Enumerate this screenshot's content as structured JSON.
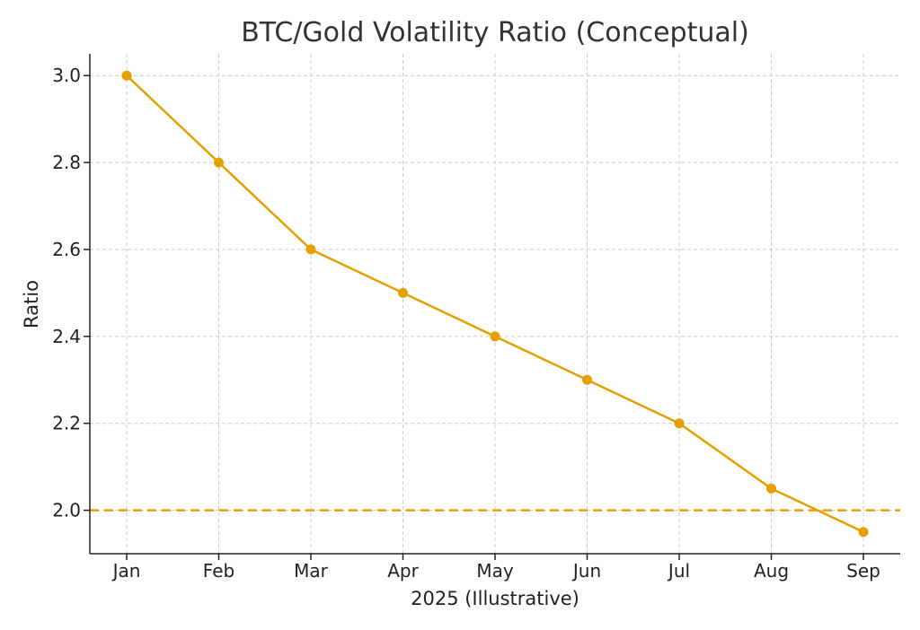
{
  "chart_data": {
    "type": "line",
    "title": "BTC/Gold Volatility Ratio (Conceptual)",
    "xlabel": "2025 (Illustrative)",
    "ylabel": "Ratio",
    "categories": [
      "Jan",
      "Feb",
      "Mar",
      "Apr",
      "May",
      "Jun",
      "Jul",
      "Aug",
      "Sep"
    ],
    "series": [
      {
        "name": "BTC/Gold Volatility Ratio",
        "values": [
          3.0,
          2.8,
          2.6,
          2.5,
          2.4,
          2.3,
          2.2,
          2.05,
          1.95
        ]
      }
    ],
    "reference_line": {
      "y": 2.0,
      "style": "dashed"
    },
    "ylim": [
      1.9,
      3.05
    ],
    "yticks": [
      2.0,
      2.2,
      2.4,
      2.6,
      2.8,
      3.0
    ],
    "ytick_labels": [
      "2.0",
      "2.2",
      "2.4",
      "2.6",
      "2.8",
      "3.0"
    ],
    "grid": true,
    "colors": {
      "line": "#E69F00",
      "grid": "#cccccc",
      "axis": "#222222"
    }
  }
}
